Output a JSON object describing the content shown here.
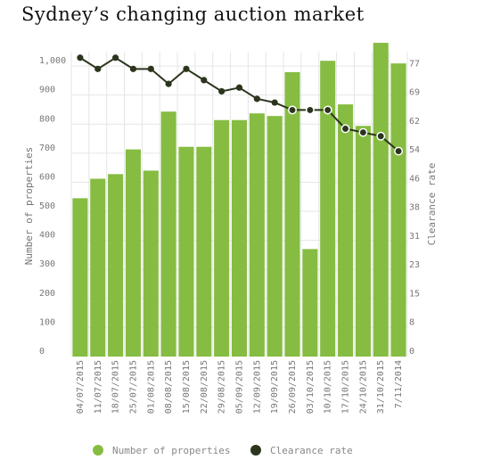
{
  "chart_data": {
    "type": "bar",
    "title": "Sydney’s changing auction market",
    "categories": [
      "04/07/2015",
      "11/07/2015",
      "18/07/2015",
      "25/07/2015",
      "01/08/2015",
      "08/08/2015",
      "15/08/2015",
      "22/08/2015",
      "29/08/2015",
      "05/09/2015",
      "12/09/2015",
      "19/09/2015",
      "26/09/2015",
      "03/10/2015",
      "10/10/2015",
      "17/10/2015",
      "24/10/2015",
      "31/10/2015",
      "7/11/2014"
    ],
    "ylabel": "Number of properties",
    "y2label": "Clearance rate",
    "ylim": [
      0,
      1080
    ],
    "y2lim": [
      0,
      84
    ],
    "yticks": [
      "0",
      "100",
      "200",
      "300",
      "400",
      "500",
      "600",
      "700",
      "800",
      "900",
      "1,000"
    ],
    "y2ticks": [
      "0",
      "8",
      "15",
      "23",
      "31",
      "38",
      "46",
      "54",
      "62",
      "69",
      "77"
    ],
    "grid": true,
    "legend_position": "bottom",
    "series": [
      {
        "name": "Number of properties",
        "kind": "bar",
        "color": "#86bc42",
        "values": [
          545,
          612,
          628,
          713,
          640,
          843,
          722,
          722,
          814,
          814,
          837,
          828,
          979,
          370,
          1018,
          868,
          794,
          1080,
          1009
        ]
      },
      {
        "name": "Clearance rate",
        "kind": "line",
        "color": "#2b351d",
        "values": [
          80,
          77,
          80,
          77,
          77,
          73,
          77,
          74,
          71,
          72,
          69,
          68,
          66,
          66,
          66,
          61,
          60,
          59,
          55
        ]
      }
    ]
  }
}
